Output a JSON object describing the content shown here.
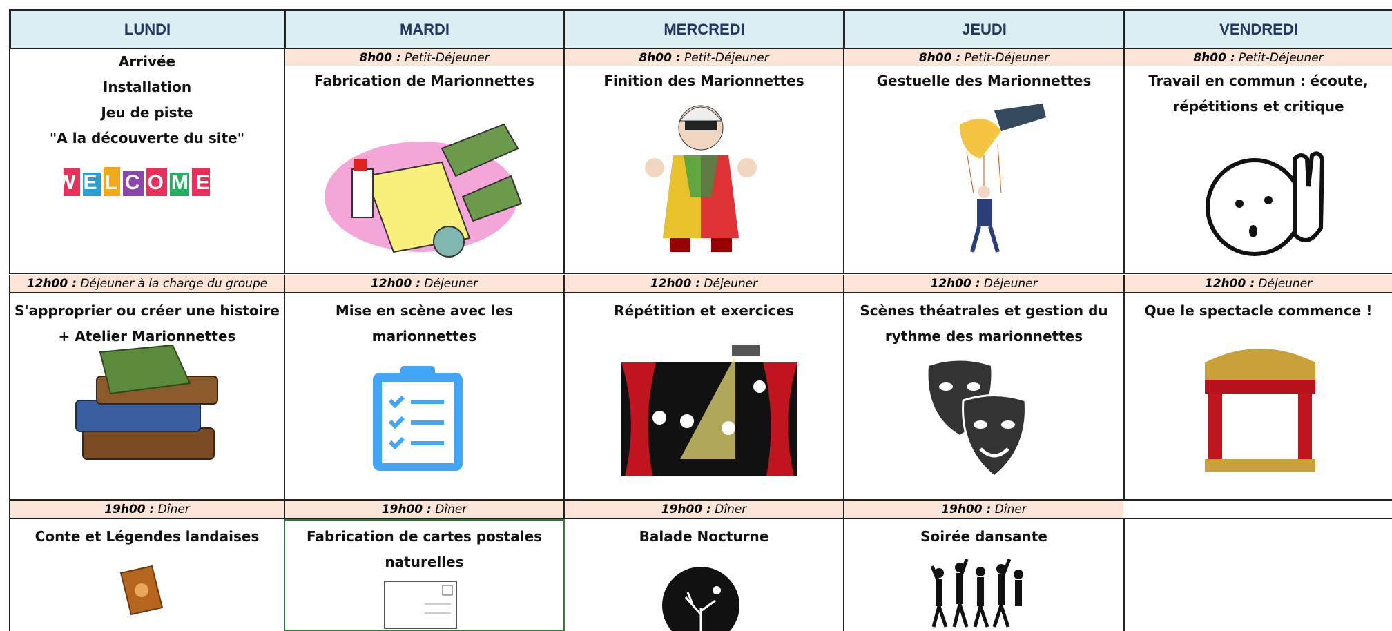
{
  "header": {
    "days": [
      "LUNDI",
      "MARDI",
      "MERCREDI",
      "JEUDI",
      "VENDREDI"
    ]
  },
  "columns": [
    {
      "morning": [
        "Arrivée",
        "Installation",
        "Jeu de piste",
        "\"A la découverte du site\""
      ],
      "morning_image_text": "WELCOME",
      "lunch": {
        "time": "12h00 :",
        "meal": "Déjeuner à la charge du groupe"
      },
      "afternoon": [
        "S'approprier ou créer une histoire",
        "+ Atelier Marionnettes"
      ],
      "dinner": {
        "time": "19h00 :",
        "meal": "Dîner"
      },
      "evening": [
        "Conte et Légendes landaises"
      ]
    },
    {
      "breakfast": {
        "time": "8h00 :",
        "meal": "Petit-Déjeuner"
      },
      "morning": [
        "Fabrication de Marionnettes"
      ],
      "lunch": {
        "time": "12h00 :",
        "meal": "Déjeuner"
      },
      "afternoon": [
        "Mise en scène avec les",
        "marionnettes"
      ],
      "dinner": {
        "time": "19h00 :",
        "meal": "Dîner"
      },
      "evening": [
        "Fabrication de cartes postales",
        "naturelles"
      ]
    },
    {
      "breakfast": {
        "time": "8h00 :",
        "meal": "Petit-Déjeuner"
      },
      "morning": [
        "Finition des Marionnettes"
      ],
      "lunch": {
        "time": "12h00 :",
        "meal": "Déjeuner"
      },
      "afternoon": [
        "Répétition et exercices"
      ],
      "dinner": {
        "time": "19h00 :",
        "meal": "Dîner"
      },
      "evening": [
        "Balade Nocturne"
      ]
    },
    {
      "breakfast": {
        "time": "8h00 :",
        "meal": "Petit-Déjeuner"
      },
      "morning": [
        "Gestuelle des Marionnettes"
      ],
      "lunch": {
        "time": "12h00 :",
        "meal": "Déjeuner"
      },
      "afternoon": [
        "Scènes théatrales et gestion du",
        "rythme des marionnettes"
      ],
      "dinner": {
        "time": "19h00 :",
        "meal": "Dîner"
      },
      "evening": [
        "Soirée dansante"
      ]
    },
    {
      "breakfast": {
        "time": "8h00 :",
        "meal": "Petit-Déjeuner"
      },
      "morning": [
        "Travail en commun : écoute,",
        "répétitions et critique"
      ],
      "lunch": {
        "time": "12h00 :",
        "meal": "Déjeuner"
      },
      "afternoon": [
        "Que le spectacle commence !"
      ]
    }
  ]
}
